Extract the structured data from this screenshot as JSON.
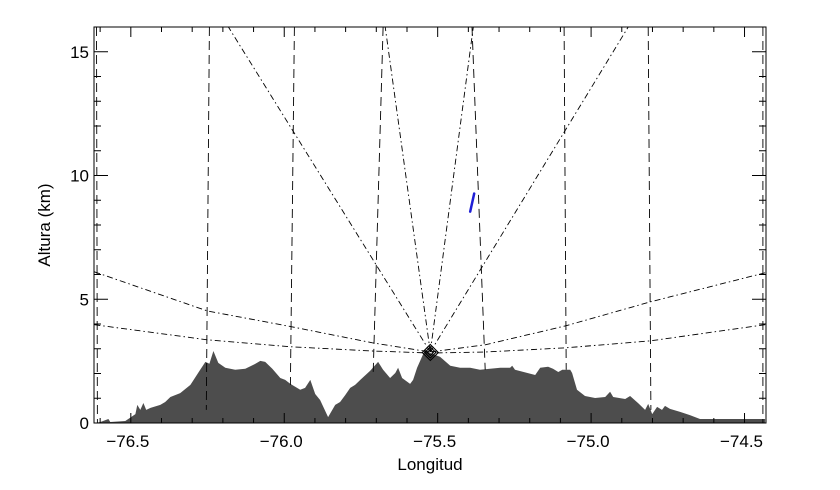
{
  "chart_data": {
    "type": "area",
    "title": "",
    "xlabel": "Longitud",
    "ylabel": "Altura (km)",
    "xlim": [
      -76.62,
      -74.43
    ],
    "ylim": [
      0,
      16
    ],
    "x_ticks": [
      -76.5,
      -76.0,
      -75.5,
      -75.0,
      -74.5
    ],
    "x_tick_labels": [
      "−76.5",
      "−76.0",
      "−75.5",
      "−75.0",
      "−74.5"
    ],
    "x_minor_step": 0.1,
    "y_ticks": [
      0,
      5,
      10,
      15
    ],
    "y_tick_labels": [
      "0",
      "5",
      "10",
      "15"
    ],
    "y_minor_step": 1,
    "grid": false,
    "colors": {
      "terrain": "#4d4d4d",
      "lines": "#000000",
      "echo": "#1f1fd6",
      "radar_marker": "#000000"
    },
    "terrain": {
      "x": [
        -76.619,
        -76.599,
        -76.573,
        -76.567,
        -76.518,
        -76.485,
        -76.479,
        -76.469,
        -76.459,
        -76.45,
        -76.436,
        -76.404,
        -76.388,
        -76.371,
        -76.339,
        -76.306,
        -76.274,
        -76.257,
        -76.244,
        -76.231,
        -76.215,
        -76.192,
        -76.16,
        -76.127,
        -76.094,
        -76.078,
        -76.062,
        -76.039,
        -76.013,
        -75.997,
        -75.98,
        -75.948,
        -75.932,
        -75.915,
        -75.899,
        -75.883,
        -75.857,
        -75.834,
        -75.818,
        -75.801,
        -75.785,
        -75.769,
        -75.752,
        -75.72,
        -75.694,
        -75.678,
        -75.655,
        -75.638,
        -75.629,
        -75.616,
        -75.59,
        -75.58,
        -75.567,
        -75.541,
        -75.524,
        -75.492,
        -75.459,
        -75.427,
        -75.394,
        -75.362,
        -75.329,
        -75.296,
        -75.264,
        -75.257,
        -75.248,
        -75.182,
        -75.166,
        -75.14,
        -75.124,
        -75.107,
        -75.094,
        -75.068,
        -75.062,
        -75.046,
        -75.02,
        -74.987,
        -74.954,
        -74.938,
        -74.928,
        -74.889,
        -74.873,
        -74.847,
        -74.824,
        -74.814,
        -74.801,
        -74.785,
        -74.769,
        -74.759,
        -74.743,
        -74.71,
        -74.678,
        -74.645,
        -74.612,
        -74.482,
        -74.433
      ],
      "y": [
        0,
        0.04,
        0.16,
        0.04,
        0.08,
        0.36,
        0.73,
        0.53,
        0.81,
        0.53,
        0.61,
        0.73,
        0.85,
        1.05,
        1.21,
        1.54,
        2.15,
        2.47,
        2.39,
        2.91,
        2.43,
        2.23,
        2.15,
        2.19,
        2.39,
        2.51,
        2.47,
        2.19,
        1.82,
        1.74,
        1.58,
        1.34,
        1.42,
        1.74,
        1.17,
        0.93,
        0.24,
        0.73,
        0.85,
        1.13,
        1.42,
        1.54,
        1.74,
        2.11,
        2.47,
        2.15,
        1.82,
        2.02,
        2.23,
        1.82,
        1.58,
        1.74,
        2.23,
        2.96,
        2.83,
        2.67,
        2.31,
        2.23,
        2.23,
        2.15,
        2.19,
        2.23,
        2.23,
        2.31,
        2.15,
        1.94,
        2.23,
        2.27,
        2.19,
        2.06,
        2.15,
        2.15,
        2.02,
        1.34,
        1.09,
        1.01,
        1.05,
        1.26,
        1.05,
        0.97,
        1.09,
        0.81,
        0.53,
        0.77,
        0.36,
        0.65,
        0.53,
        0.69,
        0.57,
        0.45,
        0.32,
        0.16,
        0.16,
        0.16,
        0.16
      ]
    },
    "radar": {
      "lon": -75.524,
      "alt": 2.85,
      "marker": "diamond"
    },
    "dashed_lines": [
      {
        "x": [
          -76.612,
          -76.609
        ],
        "y": [
          16,
          0
        ]
      },
      {
        "x": [
          -76.244,
          -76.254
        ],
        "y": [
          16,
          0.53
        ]
      },
      {
        "x": [
          -75.967,
          -75.98
        ],
        "y": [
          16,
          1.54
        ]
      },
      {
        "x": [
          -75.678,
          -75.71
        ],
        "y": [
          16,
          2.06
        ]
      },
      {
        "x": [
          -75.388,
          -75.345
        ],
        "y": [
          16,
          2.15
        ]
      },
      {
        "x": [
          -75.088,
          -75.081
        ],
        "y": [
          16,
          2.15
        ]
      },
      {
        "x": [
          -74.814,
          -74.805
        ],
        "y": [
          16,
          0.53
        ]
      },
      {
        "x": [
          -74.44,
          -74.44
        ],
        "y": [
          16,
          0
        ]
      }
    ],
    "dashdot_lines": [
      {
        "x": [
          -75.524,
          -76.182
        ],
        "y": [
          2.87,
          16
        ]
      },
      {
        "x": [
          -75.524,
          -75.671
        ],
        "y": [
          2.87,
          16
        ]
      },
      {
        "x": [
          -75.524,
          -75.384
        ],
        "y": [
          2.87,
          16
        ]
      },
      {
        "x": [
          -75.524,
          -74.879
        ],
        "y": [
          2.87,
          16
        ]
      },
      {
        "x": [
          -76.619,
          -76.251,
          -75.977,
          -75.713,
          -75.524
        ],
        "y": [
          6.11,
          4.53,
          3.89,
          3.24,
          2.87
        ]
      },
      {
        "x": [
          -76.619,
          -76.251,
          -75.977,
          -75.713,
          -75.524
        ],
        "y": [
          3.97,
          3.36,
          3.08,
          2.91,
          2.83
        ]
      },
      {
        "x": [
          -74.433,
          -74.805,
          -75.081,
          -75.345,
          -75.524
        ],
        "y": [
          6.07,
          4.9,
          3.93,
          3.16,
          2.87
        ]
      },
      {
        "x": [
          -74.433,
          -74.805,
          -75.081,
          -75.345,
          -75.524
        ],
        "y": [
          3.97,
          3.32,
          3.04,
          2.87,
          2.83
        ]
      }
    ],
    "echo": {
      "x": [
        -75.394,
        -75.381
      ],
      "y": [
        8.54,
        9.27
      ]
    }
  }
}
